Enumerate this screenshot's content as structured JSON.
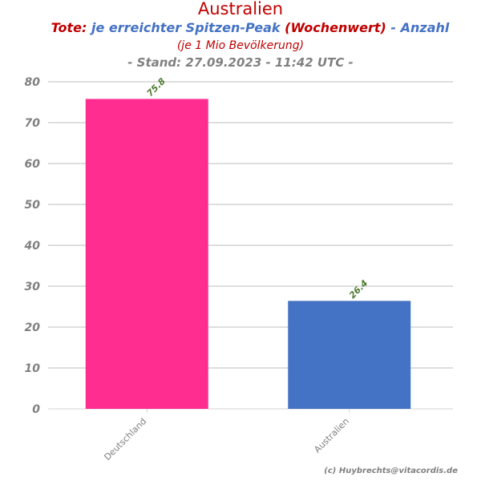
{
  "chart_data": {
    "type": "bar",
    "title": "Australien",
    "subtitle_line1": [
      {
        "text": "Tote:",
        "color": "#c00000"
      },
      {
        "text": "je erreichter Spitzen-Peak",
        "color": "#4472c4"
      },
      {
        "text": "(Wochenwert)",
        "color": "#c00000"
      },
      {
        "text": "- Anzahl",
        "color": "#4472c4"
      }
    ],
    "subtitle_line2": "(je 1 Mio Bevölkerung)",
    "subtitle_line3": "- Stand: 27.09.2023 - 11:42 UTC -",
    "categories": [
      "Deutschland",
      "Australien"
    ],
    "values": [
      75.8,
      26.4
    ],
    "value_labels": [
      "75.8",
      "26.4"
    ],
    "colors": [
      "#ff2d8f",
      "#4472c4"
    ],
    "ylim": [
      0,
      80
    ],
    "yticks": [
      0,
      10,
      20,
      30,
      40,
      50,
      60,
      70,
      80
    ],
    "grid": true,
    "credit": "(c) Huybrechts@vitacordis.de"
  }
}
